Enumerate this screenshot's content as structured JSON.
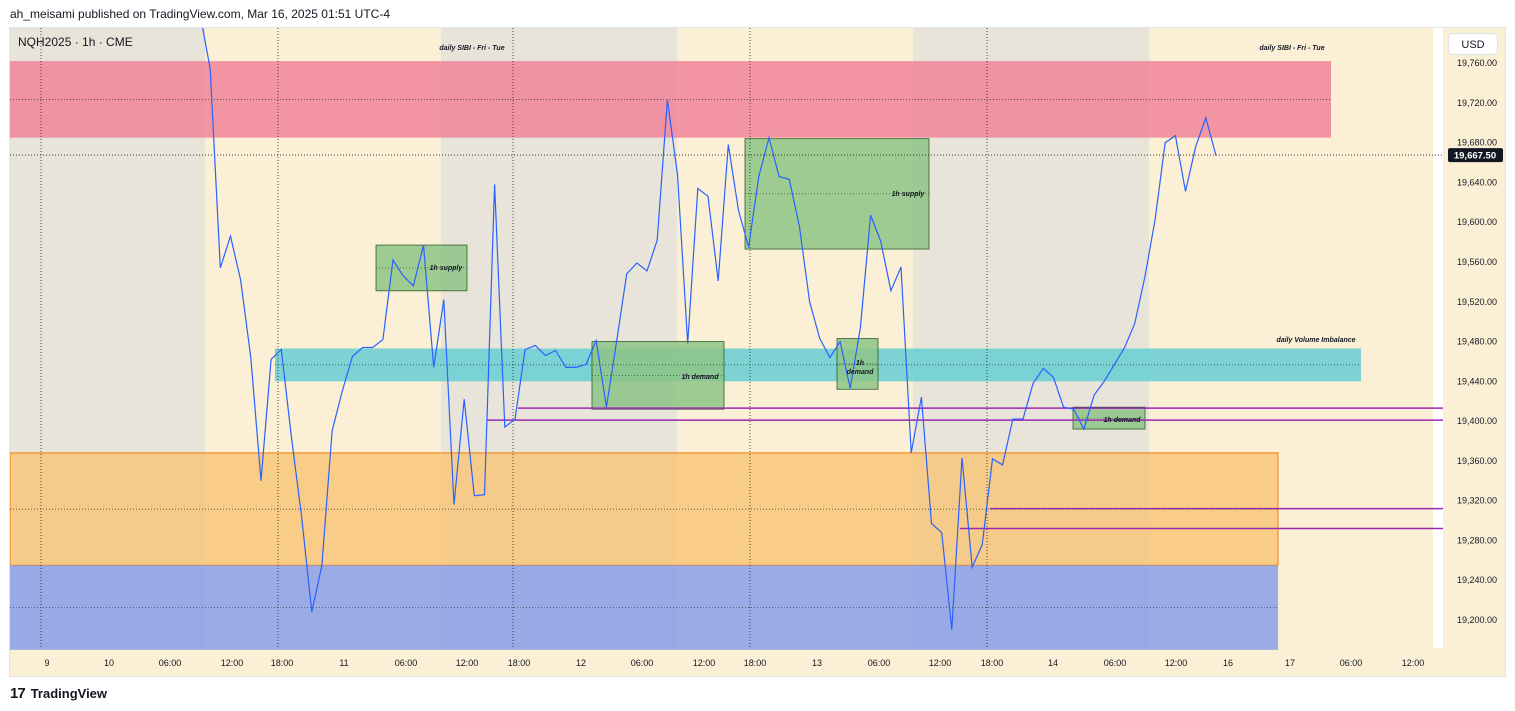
{
  "header": {
    "published_text": "ah_meisami published on TradingView.com, Mar 16, 2025 01:51 UTC-4"
  },
  "symbol_line": "NQH2025 · 1h · CME",
  "currency_button": "USD",
  "footer": {
    "logo": "17",
    "brand": "TradingView"
  },
  "colors": {
    "session_light": "#fbefd5",
    "session_dark": "#e9e4da",
    "sibi_zone": "#f08499",
    "volume_imbalance": "#6fcfd3",
    "orange_zone": "#f8c67a",
    "blue_zone": "#8a9fe8",
    "supply_demand": "#8dc486",
    "price_line": "#2962ff",
    "level_line": "#9c27b0"
  },
  "chart_data": {
    "type": "line",
    "symbol": "NQH2025",
    "interval": "1h",
    "exchange": "CME",
    "ylim": [
      19170,
      19780
    ],
    "y_ticks": [
      19760,
      19720,
      19680,
      19640,
      19600,
      19560,
      19520,
      19480,
      19440,
      19400,
      19360,
      19320,
      19280,
      19240,
      19200
    ],
    "y_tick_labels": [
      "19,760.00",
      "19,720.00",
      "19,680.00",
      "19,640.00",
      "19,600.00",
      "19,560.00",
      "19,520.00",
      "19,480.00",
      "19,440.00",
      "19,400.00",
      "19,360.00",
      "19,320.00",
      "19,280.00",
      "19,240.00",
      "19,200.00"
    ],
    "x_tick_labels": [
      "9",
      "10",
      "06:00",
      "12:00",
      "18:00",
      "11",
      "06:00",
      "12:00",
      "18:00",
      "12",
      "06:00",
      "12:00",
      "18:00",
      "13",
      "06:00",
      "12:00",
      "18:00",
      "14",
      "06:00",
      "12:00",
      "16",
      "17",
      "06:00",
      "12:00"
    ],
    "last_price": 19667.5,
    "last_price_label": "19,667.50",
    "series": [
      {
        "values": [
          19810,
          19754,
          19554,
          19586,
          19542,
          19464,
          19340,
          19462,
          19472,
          19384,
          19304,
          19208,
          19255,
          19390,
          19430,
          19465,
          19474,
          19474,
          19482,
          19562,
          19546,
          19536,
          19577,
          19454,
          19522,
          19316,
          19422,
          19325,
          19326,
          19638,
          19394,
          19402,
          19472,
          19476,
          19466,
          19471,
          19454,
          19454,
          19457,
          19481,
          19414,
          19480,
          19548,
          19559,
          19551,
          19582,
          19723,
          19648,
          19478,
          19634,
          19626,
          19541,
          19678,
          19612,
          19575,
          19646,
          19685,
          19646,
          19643,
          19596,
          19520,
          19483,
          19464,
          19480,
          19433,
          19494,
          19607,
          19581,
          19531,
          19555,
          19368,
          19424,
          19297,
          19288,
          19190,
          19363,
          19253,
          19276,
          19362,
          19356,
          19402,
          19402,
          19438,
          19453,
          19444,
          19414,
          19412,
          19392,
          19426,
          19440,
          19457,
          19474,
          19498,
          19545,
          19602,
          19680,
          19687,
          19631,
          19676,
          19705,
          19667
        ]
      }
    ],
    "zones": [
      {
        "label": "daily SIBI - Fri - Tue",
        "top": 19762,
        "bottom": 19685
      },
      {
        "label": "daily SIBI - Fri - Tue",
        "top": 19762,
        "bottom": 19685
      },
      {
        "label": "daily Volume Imbalance",
        "top": 19473,
        "bottom": 19440
      },
      {
        "label": "",
        "top": 19368,
        "bottom": 19255
      },
      {
        "label": "",
        "top": 19255,
        "bottom": 19170
      }
    ],
    "boxes": [
      {
        "label": "1h supply",
        "top": 19577,
        "bottom": 19531
      },
      {
        "label": "1h demand",
        "top": 19480,
        "bottom": 19412
      },
      {
        "label": "1h supply",
        "top": 19684,
        "bottom": 19573
      },
      {
        "label": "1h",
        "label2": "demand",
        "top": 19483,
        "bottom": 19432
      },
      {
        "label": "1h demand",
        "top": 19414,
        "bottom": 19392
      }
    ],
    "levels": [
      19413,
      19401,
      19312,
      19292
    ],
    "grid": false,
    "legend": "none"
  }
}
